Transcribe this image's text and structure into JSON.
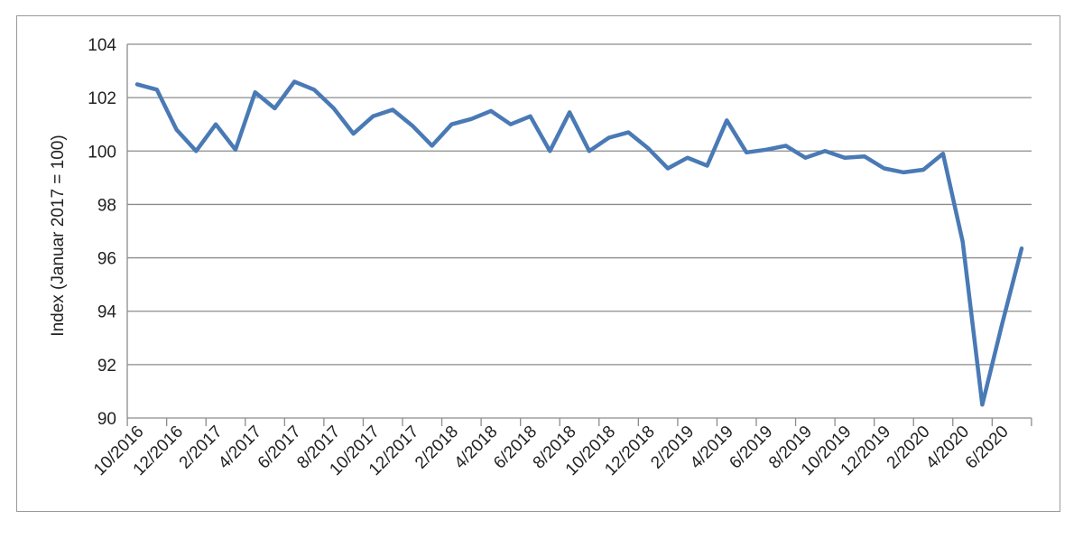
{
  "chart_data": {
    "type": "line",
    "ylabel": "Index (Januar 2017 = 100)",
    "ylim": [
      90,
      104
    ],
    "yticks": [
      90,
      92,
      94,
      96,
      98,
      100,
      102,
      104
    ],
    "grid": "horizontal",
    "legend": "none",
    "colors": {
      "line": "#4a7ab5",
      "grid": "#8c8c8c",
      "axis": "#8c8c8c"
    },
    "x": [
      "10/2016",
      "11/2016",
      "12/2016",
      "1/2017",
      "2/2017",
      "3/2017",
      "4/2017",
      "5/2017",
      "6/2017",
      "7/2017",
      "8/2017",
      "9/2017",
      "10/2017",
      "11/2017",
      "12/2017",
      "1/2018",
      "2/2018",
      "3/2018",
      "4/2018",
      "5/2018",
      "6/2018",
      "7/2018",
      "8/2018",
      "9/2018",
      "10/2018",
      "11/2018",
      "12/2018",
      "1/2019",
      "2/2019",
      "3/2019",
      "4/2019",
      "5/2019",
      "6/2019",
      "7/2019",
      "8/2019",
      "9/2019",
      "10/2019",
      "11/2019",
      "12/2019",
      "1/2020",
      "2/2020",
      "3/2020",
      "4/2020",
      "5/2020",
      "6/2020",
      "7/2020"
    ],
    "xtick_labels": [
      "10/2016",
      "12/2016",
      "2/2017",
      "4/2017",
      "6/2017",
      "8/2017",
      "10/2017",
      "12/2017",
      "2/2018",
      "4/2018",
      "6/2018",
      "8/2018",
      "10/2018",
      "12/2018",
      "2/2019",
      "4/2019",
      "6/2019",
      "8/2019",
      "10/2019",
      "12/2019",
      "2/2020",
      "4/2020",
      "6/2020"
    ],
    "series": [
      {
        "values": [
          102.5,
          102.3,
          100.8,
          100.0,
          101.0,
          100.05,
          102.2,
          101.6,
          102.6,
          102.3,
          101.6,
          100.65,
          101.3,
          101.55,
          100.95,
          100.2,
          101.0,
          101.2,
          101.5,
          101.0,
          101.3,
          100.0,
          101.45,
          100.0,
          100.5,
          100.7,
          100.1,
          99.35,
          99.75,
          99.45,
          101.15,
          99.95,
          100.05,
          100.2,
          99.75,
          100.0,
          99.75,
          99.8,
          99.35,
          99.2,
          99.3,
          99.9,
          96.6,
          90.5,
          93.5,
          96.35
        ]
      }
    ]
  }
}
